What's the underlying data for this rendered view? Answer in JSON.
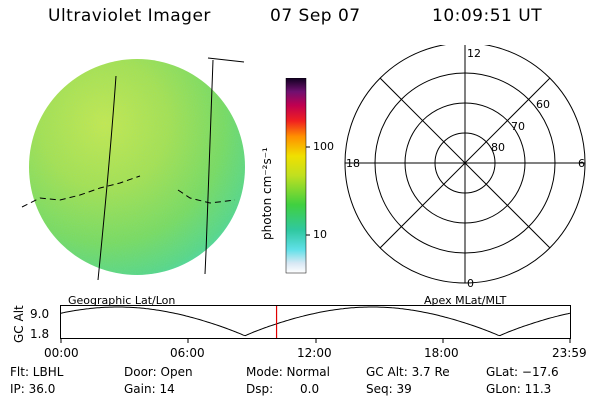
{
  "header": {
    "title": "Ultraviolet Imager",
    "date": "07 Sep 07",
    "time": "10:09:51 UT"
  },
  "colorbar": {
    "label": "photon cm⁻²s⁻¹",
    "ticks": [
      "100",
      "10"
    ]
  },
  "polar": {
    "mlt_labels": [
      "12",
      "18",
      "6",
      "0"
    ],
    "lat_labels": [
      "60",
      "70",
      "80"
    ]
  },
  "orbit": {
    "left_label": "Geographic Lat/Lon",
    "right_label": "Apex MLat/MLT",
    "y_axis_label": "GC Alt",
    "y_ticks": [
      "9.0",
      "1.8"
    ],
    "x_ticks": [
      "00:00",
      "06:00",
      "12:00",
      "18:00",
      "23:59"
    ],
    "current_time_hours": 10.164
  },
  "status": {
    "filter": "Flt: LBHL",
    "ip": "IP: 36.0",
    "door": "Door: Open",
    "gain": "Gain: 14",
    "mode": "Mode: Normal",
    "dsp": "Dsp:",
    "dsp_value": "0.0",
    "gc_alt": "GC Alt: 3.7 Re",
    "seq": "Seq: 39",
    "glat": "GLat: −17.6",
    "glon": "GLon:  11.3"
  }
}
